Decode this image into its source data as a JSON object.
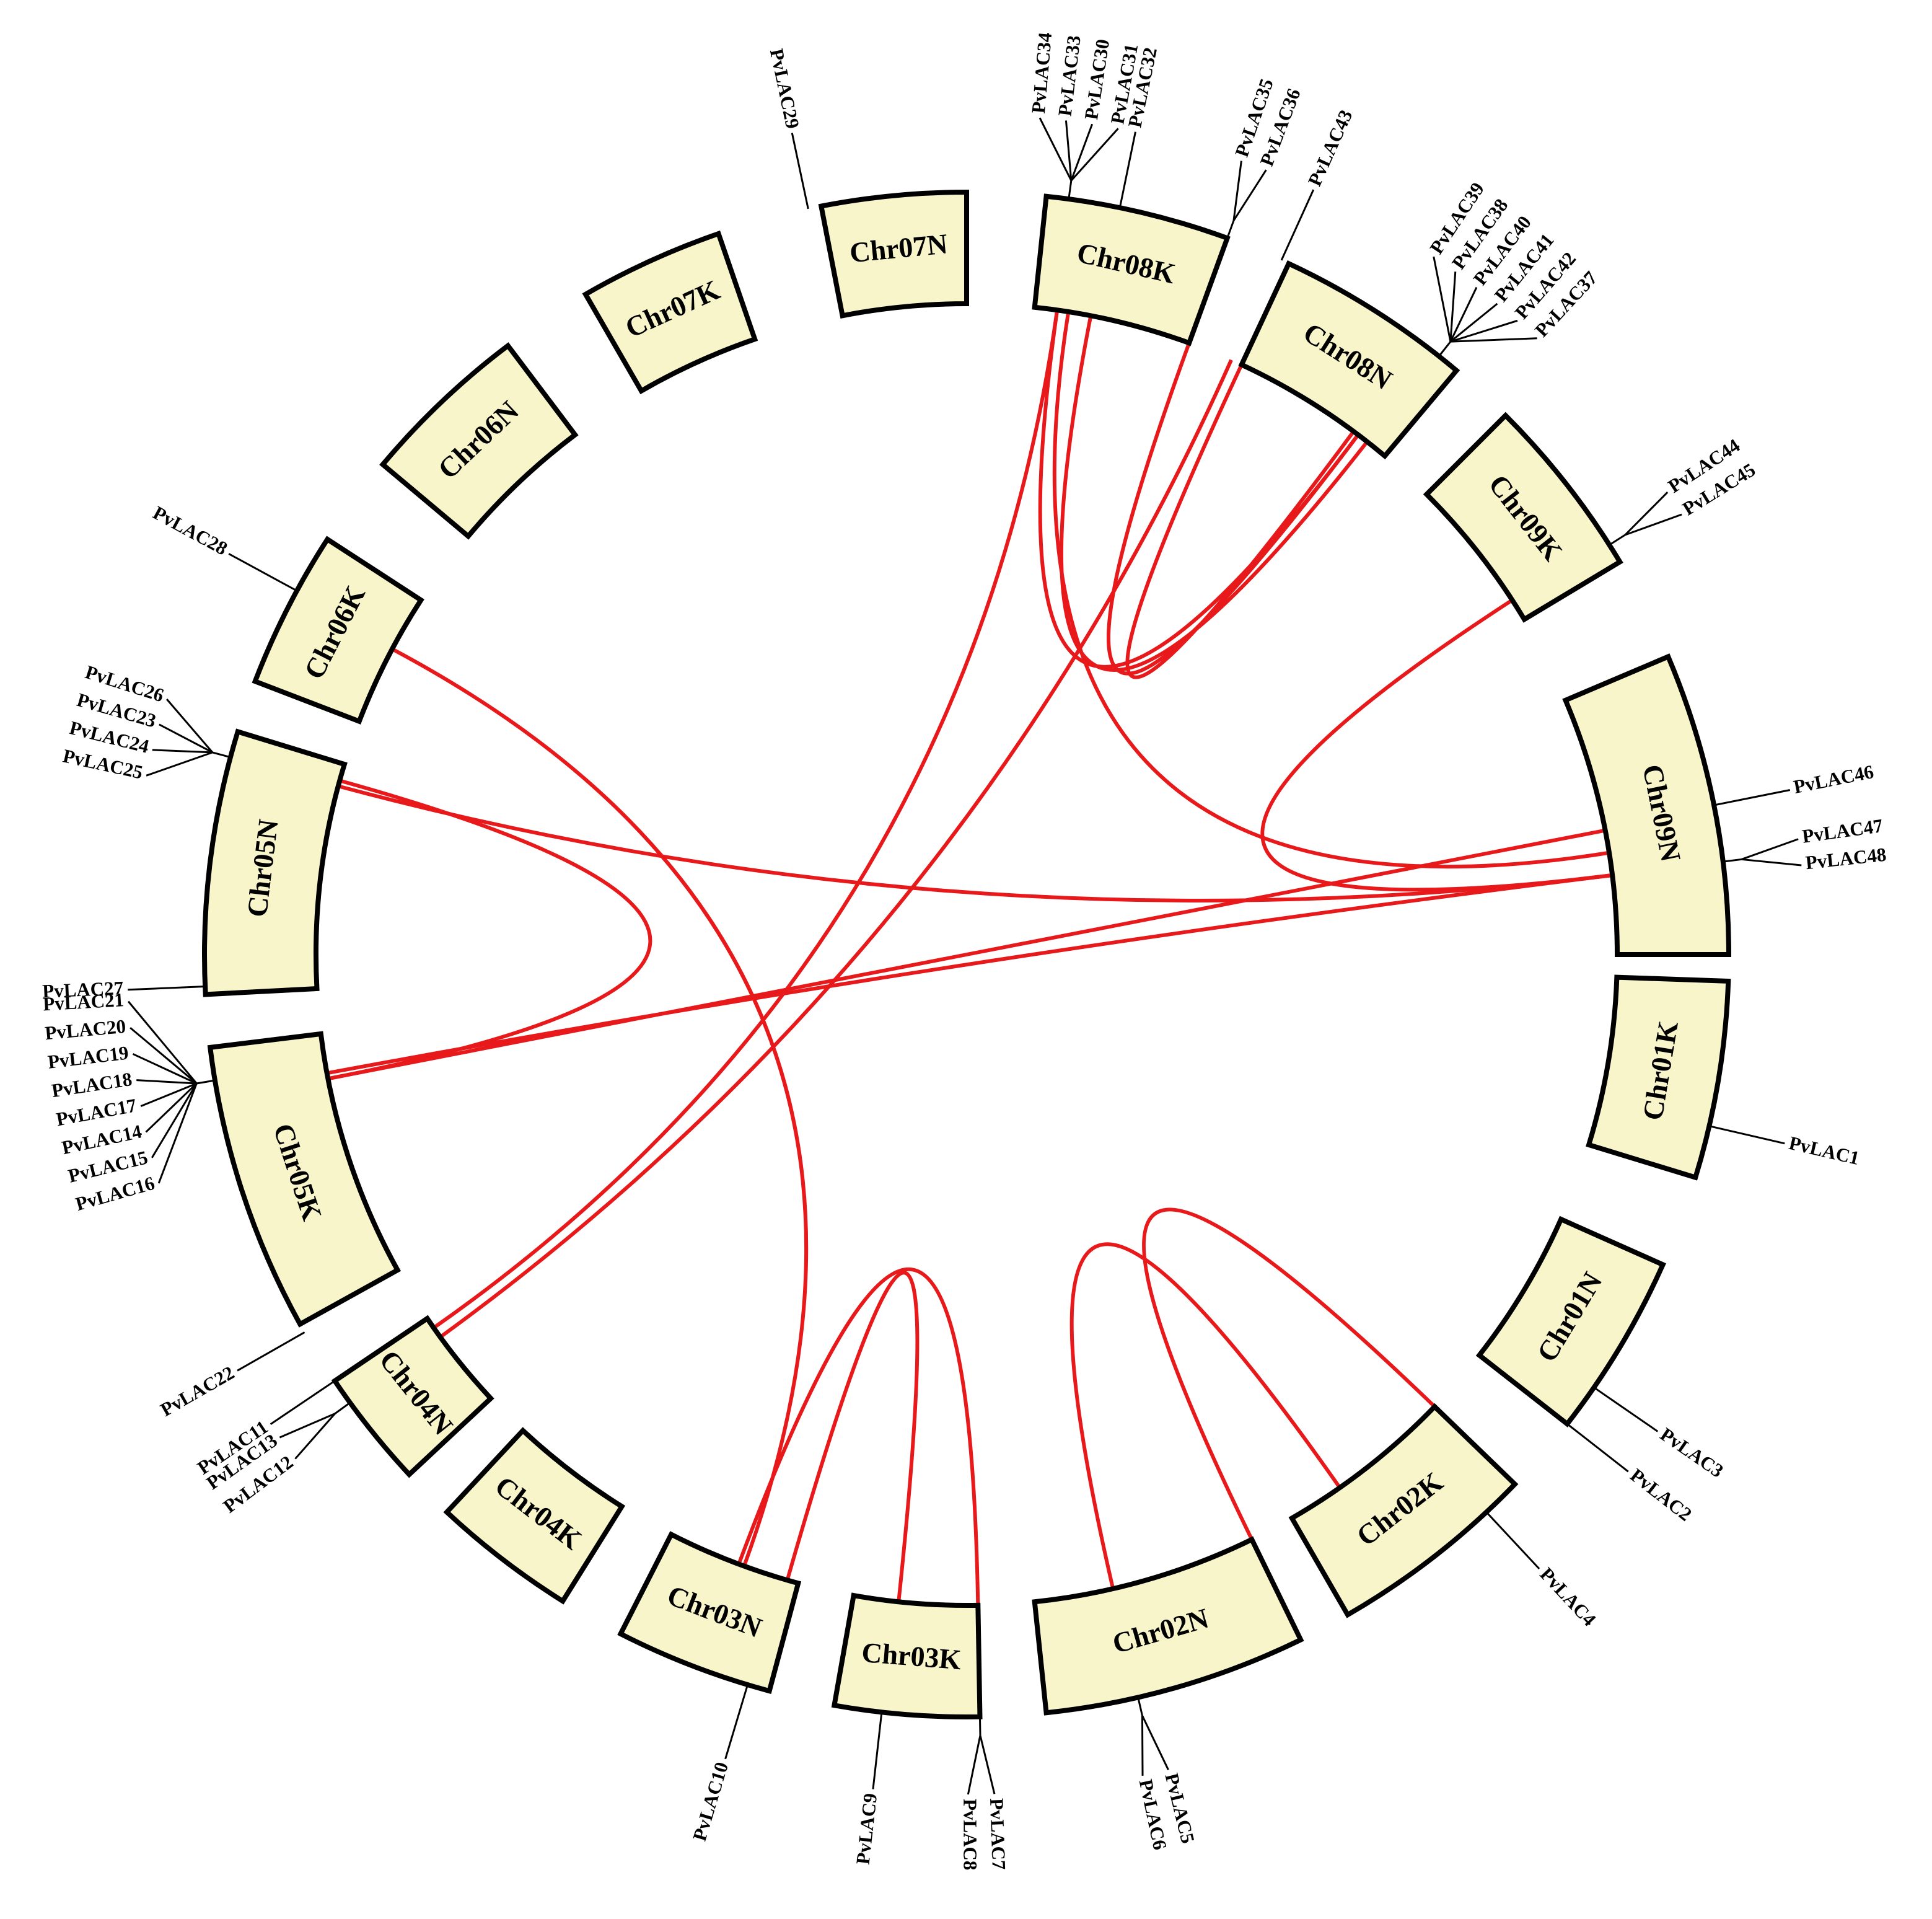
{
  "chromosomes": [
    {
      "label": "Chr01K",
      "genes": [
        "PvLAC1"
      ]
    },
    {
      "label": "Chr01N",
      "genes": [
        "PvLAC3",
        "PvLAC2"
      ]
    },
    {
      "label": "Chr02K",
      "genes": [
        "PvLAC4"
      ]
    },
    {
      "label": "Chr02N",
      "genes": [
        "PvLAC6",
        "PvLAC5"
      ]
    },
    {
      "label": "Chr03K",
      "genes": [
        "PvLAC9",
        "PvLAC8",
        "PvLAC7"
      ]
    },
    {
      "label": "Chr03N",
      "genes": [
        "PvLAC10"
      ]
    },
    {
      "label": "Chr04K",
      "genes": []
    },
    {
      "label": "Chr04N",
      "genes": [
        "PvLAC11",
        "PvLAC13",
        "PvLAC12"
      ]
    },
    {
      "label": "Chr05K",
      "genes": [
        "PvLAC22",
        "PvLAC21",
        "PvLAC20",
        "PvLAC19",
        "PvLAC18",
        "PvLAC17",
        "PvLAC14",
        "PvLAC15",
        "PvLAC16"
      ]
    },
    {
      "label": "Chr05N",
      "genes": [
        "PvLAC27",
        "PvLAC26",
        "PvLAC23",
        "PvLAC24",
        "PvLAC25"
      ]
    },
    {
      "label": "Chr06K",
      "genes": [
        "PvLAC28"
      ]
    },
    {
      "label": "Chr06N",
      "genes": []
    },
    {
      "label": "Chr07K",
      "genes": []
    },
    {
      "label": "Chr07N",
      "genes": [
        "PvLAC29"
      ]
    },
    {
      "label": "Chr08K",
      "genes": [
        "PvLAC34",
        "PvLAC33",
        "PvLAC30",
        "PvLAC31",
        "PvLAC32",
        "PvLAC35",
        "PvLAC36"
      ]
    },
    {
      "label": "Chr08N",
      "genes": [
        "PvLAC43",
        "PvLAC39",
        "PvLAC38",
        "PvLAC40",
        "PvLAC41",
        "PvLAC42",
        "PvLAC37"
      ]
    },
    {
      "label": "Chr09K",
      "genes": [
        "PvLAC44",
        "PvLAC45"
      ]
    },
    {
      "label": "Chr09N",
      "genes": [
        "PvLAC46",
        "PvLAC47",
        "PvLAC48"
      ]
    }
  ]
}
